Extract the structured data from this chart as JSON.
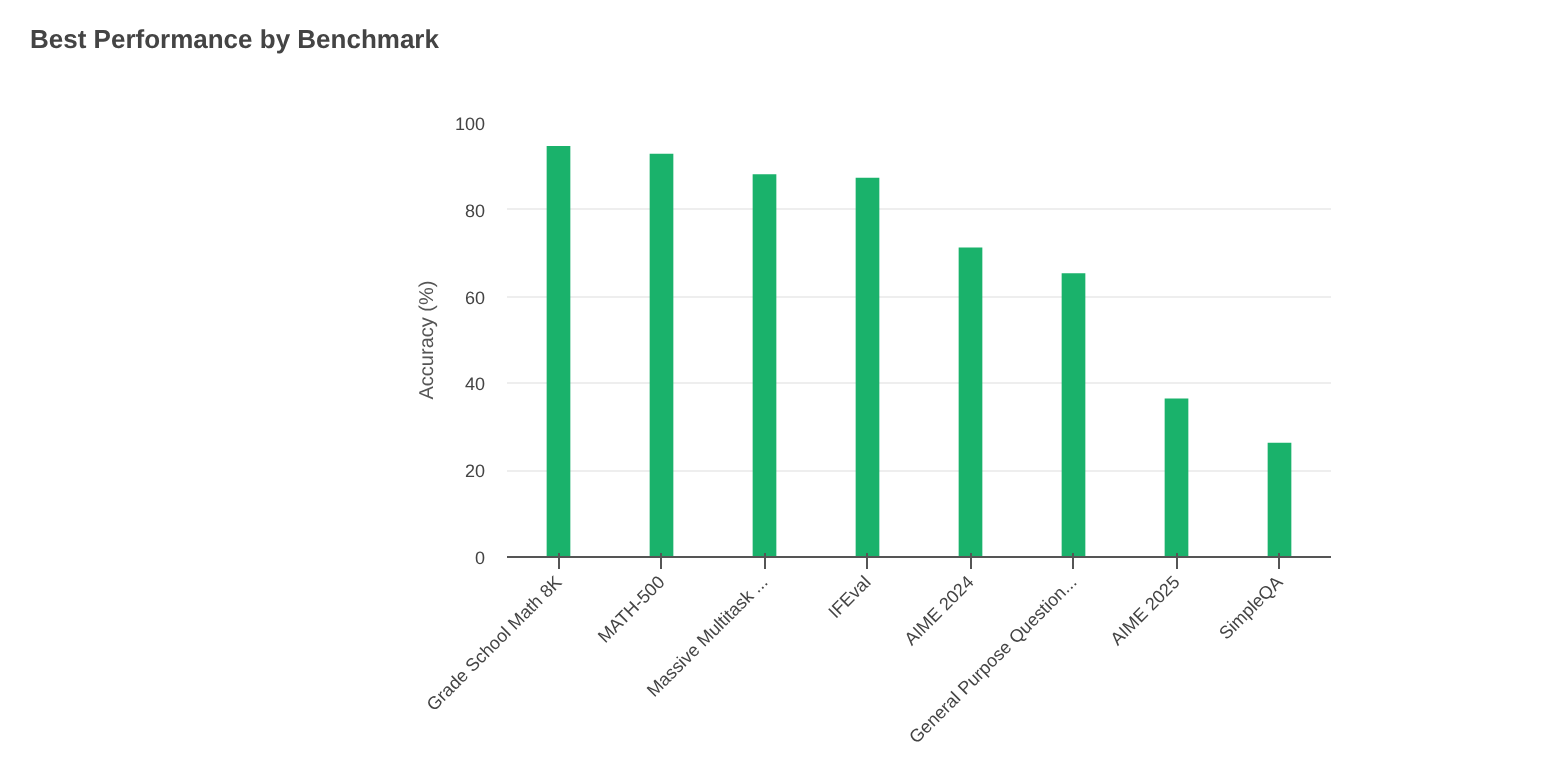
{
  "chart_data": {
    "type": "bar",
    "title": "Best Performance by Benchmark",
    "ylabel": "Accuracy (%)",
    "categories": [
      "Grade School Math 8K",
      "MATH-500",
      "Massive Multitask ...",
      "IFEval",
      "AIME 2024",
      "General Purpose Question...",
      "AIME 2025",
      "SimpleQA"
    ],
    "values": [
      94.7,
      92.9,
      88.2,
      87.4,
      71.3,
      65.4,
      36.5,
      26.3
    ],
    "color": "#1ab26b",
    "ylim": [
      0,
      100
    ],
    "yticks": [
      0,
      20,
      40,
      60,
      80,
      100
    ],
    "grid": "y"
  }
}
